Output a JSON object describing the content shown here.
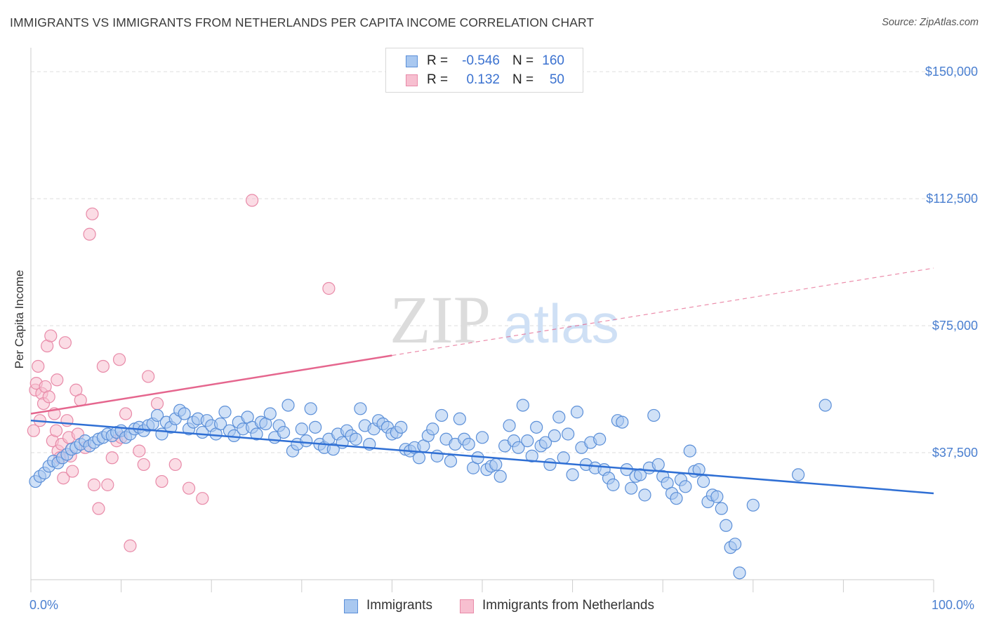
{
  "title": "IMMIGRANTS VS IMMIGRANTS FROM NETHERLANDS PER CAPITA INCOME CORRELATION CHART",
  "source": "Source: ZipAtlas.com",
  "watermark": {
    "zip": "ZIP",
    "atlas": "atlas"
  },
  "colors": {
    "blue_fill": "#a9c8f0",
    "blue_stroke": "#5b8fd8",
    "blue_line": "#2f6fd4",
    "pink_fill": "#f7bfd0",
    "pink_stroke": "#e88aa8",
    "pink_line": "#e5668e",
    "axis_text": "#4a7fd0",
    "grid": "#dddddd"
  },
  "legend": {
    "rows": [
      {
        "r_label": "R =",
        "r_value": "-0.546",
        "n_label": "N =",
        "n_value": "160"
      },
      {
        "r_label": "R =",
        "r_value": "0.132",
        "n_label": "N =",
        "n_value": "50"
      }
    ]
  },
  "bottom_legend": {
    "immigrants": "Immigrants",
    "netherlands": "Immigrants from Netherlands"
  },
  "chart_data": {
    "type": "scatter",
    "title": "IMMIGRANTS VS IMMIGRANTS FROM NETHERLANDS PER CAPITA INCOME CORRELATION CHART",
    "xlabel": "",
    "ylabel": "Per Capita Income",
    "xlim": [
      0,
      100
    ],
    "ylim": [
      0,
      155000
    ],
    "x_tick_labels": [
      "0.0%",
      "100.0%"
    ],
    "y_ticks": [
      {
        "value": 37500,
        "label": "$37,500"
      },
      {
        "value": 75000,
        "label": "$75,000"
      },
      {
        "value": 112500,
        "label": "$112,500"
      },
      {
        "value": 150000,
        "label": "$150,000"
      }
    ],
    "x_minor_ticks": [
      0,
      10,
      20,
      30,
      40,
      50,
      60,
      70,
      80,
      90,
      100
    ],
    "series": [
      {
        "name": "Immigrants",
        "color": "blue",
        "r": -0.546,
        "n": 160,
        "trend": {
          "x": [
            0,
            100
          ],
          "y": [
            47000,
            25500
          ],
          "dashed_from": null
        },
        "points": [
          [
            0.5,
            29000
          ],
          [
            1,
            30500
          ],
          [
            1.5,
            31500
          ],
          [
            2,
            33500
          ],
          [
            2.5,
            35000
          ],
          [
            3,
            34500
          ],
          [
            3.5,
            36000
          ],
          [
            4,
            37000
          ],
          [
            4.5,
            38500
          ],
          [
            5,
            39000
          ],
          [
            5.5,
            40000
          ],
          [
            6,
            41000
          ],
          [
            6.5,
            39500
          ],
          [
            7,
            40500
          ],
          [
            7.5,
            41500
          ],
          [
            8,
            42000
          ],
          [
            8.5,
            43000
          ],
          [
            9,
            42500
          ],
          [
            9.5,
            43500
          ],
          [
            10,
            44000
          ],
          [
            10.5,
            42000
          ],
          [
            11,
            43000
          ],
          [
            11.5,
            44500
          ],
          [
            12,
            45000
          ],
          [
            12.5,
            44000
          ],
          [
            13,
            45500
          ],
          [
            13.5,
            46000
          ],
          [
            14,
            48500
          ],
          [
            14.5,
            43000
          ],
          [
            15,
            46500
          ],
          [
            15.5,
            45000
          ],
          [
            16,
            47500
          ],
          [
            16.5,
            50000
          ],
          [
            17,
            49000
          ],
          [
            17.5,
            44500
          ],
          [
            18,
            46500
          ],
          [
            18.5,
            47500
          ],
          [
            19,
            43500
          ],
          [
            19.5,
            47000
          ],
          [
            20,
            45500
          ],
          [
            20.5,
            43000
          ],
          [
            21,
            46000
          ],
          [
            21.5,
            49500
          ],
          [
            22,
            44000
          ],
          [
            22.5,
            42500
          ],
          [
            23,
            46500
          ],
          [
            23.5,
            44500
          ],
          [
            24,
            48000
          ],
          [
            24.5,
            45000
          ],
          [
            25,
            43000
          ],
          [
            25.5,
            46500
          ],
          [
            26,
            46000
          ],
          [
            26.5,
            49000
          ],
          [
            27,
            42000
          ],
          [
            27.5,
            45500
          ],
          [
            28,
            43500
          ],
          [
            28.5,
            51500
          ],
          [
            29,
            38000
          ],
          [
            29.5,
            40000
          ],
          [
            30,
            44500
          ],
          [
            30.5,
            41000
          ],
          [
            31,
            50500
          ],
          [
            31.5,
            45000
          ],
          [
            32,
            40000
          ],
          [
            32.5,
            39000
          ],
          [
            33,
            41500
          ],
          [
            33.5,
            38500
          ],
          [
            34,
            43000
          ],
          [
            34.5,
            40500
          ],
          [
            35,
            44000
          ],
          [
            35.5,
            42500
          ],
          [
            36,
            41500
          ],
          [
            36.5,
            50500
          ],
          [
            37,
            45500
          ],
          [
            37.5,
            40000
          ],
          [
            38,
            44500
          ],
          [
            38.5,
            47000
          ],
          [
            39,
            46000
          ],
          [
            39.5,
            45000
          ],
          [
            40,
            43000
          ],
          [
            40.5,
            43500
          ],
          [
            41,
            45000
          ],
          [
            41.5,
            38500
          ],
          [
            42,
            38000
          ],
          [
            42.5,
            39000
          ],
          [
            43,
            36000
          ],
          [
            43.5,
            39500
          ],
          [
            44,
            42500
          ],
          [
            44.5,
            44500
          ],
          [
            45,
            36500
          ],
          [
            45.5,
            48500
          ],
          [
            46,
            41500
          ],
          [
            46.5,
            35000
          ],
          [
            47,
            40000
          ],
          [
            47.5,
            47500
          ],
          [
            48,
            41500
          ],
          [
            48.5,
            40000
          ],
          [
            49,
            33000
          ],
          [
            49.5,
            36000
          ],
          [
            50,
            42000
          ],
          [
            50.5,
            32500
          ],
          [
            51,
            33500
          ],
          [
            51.5,
            34000
          ],
          [
            52,
            30500
          ],
          [
            52.5,
            39500
          ],
          [
            53,
            45500
          ],
          [
            53.5,
            41000
          ],
          [
            54,
            39000
          ],
          [
            54.5,
            51500
          ],
          [
            55,
            41000
          ],
          [
            55.5,
            36500
          ],
          [
            56,
            45000
          ],
          [
            56.5,
            39500
          ],
          [
            57,
            40500
          ],
          [
            57.5,
            34000
          ],
          [
            58,
            42500
          ],
          [
            58.5,
            48000
          ],
          [
            59,
            36000
          ],
          [
            59.5,
            43000
          ],
          [
            60,
            31000
          ],
          [
            60.5,
            49500
          ],
          [
            61,
            39000
          ],
          [
            61.5,
            34000
          ],
          [
            62,
            40500
          ],
          [
            62.5,
            33000
          ],
          [
            63,
            41500
          ],
          [
            63.5,
            32500
          ],
          [
            64,
            30000
          ],
          [
            64.5,
            28000
          ],
          [
            65,
            47000
          ],
          [
            65.5,
            46500
          ],
          [
            66,
            32500
          ],
          [
            66.5,
            27000
          ],
          [
            67,
            30500
          ],
          [
            67.5,
            31000
          ],
          [
            68,
            25000
          ],
          [
            68.5,
            33000
          ],
          [
            69,
            48500
          ],
          [
            69.5,
            34000
          ],
          [
            70,
            30500
          ],
          [
            70.5,
            28500
          ],
          [
            71,
            25500
          ],
          [
            71.5,
            24000
          ],
          [
            72,
            29500
          ],
          [
            72.5,
            27500
          ],
          [
            73,
            38000
          ],
          [
            73.5,
            32000
          ],
          [
            74,
            32500
          ],
          [
            74.5,
            29000
          ],
          [
            75,
            23000
          ],
          [
            75.5,
            25000
          ],
          [
            76,
            24500
          ],
          [
            76.5,
            21000
          ],
          [
            77,
            16000
          ],
          [
            77.5,
            9500
          ],
          [
            78,
            10500
          ],
          [
            78.5,
            2000
          ],
          [
            80,
            22000
          ],
          [
            85,
            31000
          ],
          [
            88,
            51500
          ]
        ]
      },
      {
        "name": "Immigrants from Netherlands",
        "color": "pink",
        "r": 0.132,
        "n": 50,
        "trend": {
          "x": [
            0,
            100
          ],
          "y": [
            49000,
            92000
          ],
          "dashed_from": 40
        },
        "points": [
          [
            0.3,
            44000
          ],
          [
            0.5,
            56000
          ],
          [
            0.6,
            58000
          ],
          [
            0.8,
            63000
          ],
          [
            1,
            47000
          ],
          [
            1.2,
            55000
          ],
          [
            1.4,
            52000
          ],
          [
            1.6,
            57000
          ],
          [
            1.8,
            69000
          ],
          [
            2,
            54000
          ],
          [
            2.2,
            72000
          ],
          [
            2.4,
            41000
          ],
          [
            2.6,
            49000
          ],
          [
            2.8,
            44000
          ],
          [
            3,
            38000
          ],
          [
            3.2,
            36000
          ],
          [
            3.4,
            40000
          ],
          [
            3.6,
            30000
          ],
          [
            3.8,
            70000
          ],
          [
            4,
            47000
          ],
          [
            4.2,
            42000
          ],
          [
            4.4,
            36500
          ],
          [
            4.6,
            32000
          ],
          [
            5,
            56000
          ],
          [
            5.5,
            53000
          ],
          [
            6,
            39000
          ],
          [
            6.5,
            102000
          ],
          [
            7,
            28000
          ],
          [
            7.5,
            21000
          ],
          [
            8,
            63000
          ],
          [
            8.5,
            28000
          ],
          [
            9,
            36000
          ],
          [
            9.5,
            41000
          ],
          [
            10,
            42000
          ],
          [
            10.5,
            49000
          ],
          [
            11,
            10000
          ],
          [
            12,
            38000
          ],
          [
            12.5,
            34000
          ],
          [
            13,
            60000
          ],
          [
            14,
            52000
          ],
          [
            14.5,
            29000
          ],
          [
            16,
            34000
          ],
          [
            17.5,
            27000
          ],
          [
            19,
            24000
          ],
          [
            24.5,
            112000
          ],
          [
            33,
            86000
          ],
          [
            6.8,
            108000
          ],
          [
            9.8,
            65000
          ],
          [
            5.2,
            43000
          ],
          [
            2.9,
            59000
          ]
        ]
      }
    ]
  }
}
